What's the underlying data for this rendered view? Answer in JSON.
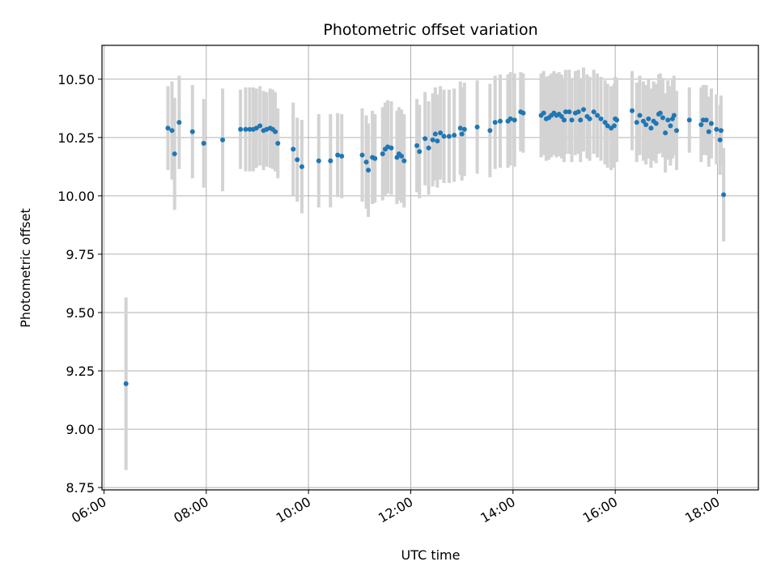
{
  "chart_data": {
    "type": "scatter",
    "title": "Photometric offset variation",
    "xlabel": "UTC time",
    "ylabel": "Photometric offset",
    "x_unit": "hours (UTC, same day)",
    "xlim": [
      5.96,
      18.8
    ],
    "ylim": [
      8.74,
      10.645
    ],
    "x_ticks": [
      6,
      8,
      10,
      12,
      14,
      16,
      18
    ],
    "x_tick_labels": [
      "06:00",
      "08:00",
      "10:00",
      "12:00",
      "14:00",
      "16:00",
      "18:00"
    ],
    "y_ticks": [
      8.75,
      9.0,
      9.25,
      9.5,
      9.75,
      10.0,
      10.25,
      10.5
    ],
    "y_tick_labels": [
      "8.75",
      "9.00",
      "9.25",
      "9.50",
      "9.75",
      "10.00",
      "10.25",
      "10.50"
    ],
    "grid": true,
    "colors": {
      "point": "#1f77b4",
      "errorbar": "#d3d3d3",
      "grid": "#b0b0b0"
    },
    "points": [
      [
        6.43,
        9.195,
        0.37
      ],
      [
        7.25,
        10.29,
        0.18
      ],
      [
        7.33,
        10.28,
        0.21
      ],
      [
        7.38,
        10.18,
        0.24
      ],
      [
        7.47,
        10.315,
        0.2
      ],
      [
        7.73,
        10.275,
        0.2
      ],
      [
        7.95,
        10.225,
        0.19
      ],
      [
        8.32,
        10.24,
        0.22
      ],
      [
        8.67,
        10.285,
        0.17
      ],
      [
        8.77,
        10.285,
        0.18
      ],
      [
        8.85,
        10.285,
        0.18
      ],
      [
        8.92,
        10.285,
        0.18
      ],
      [
        8.98,
        10.29,
        0.17
      ],
      [
        9.05,
        10.3,
        0.17
      ],
      [
        9.12,
        10.28,
        0.17
      ],
      [
        9.18,
        10.285,
        0.16
      ],
      [
        9.25,
        10.29,
        0.17
      ],
      [
        9.3,
        10.285,
        0.17
      ],
      [
        9.35,
        10.275,
        0.17
      ],
      [
        9.4,
        10.225,
        0.15
      ],
      [
        9.7,
        10.2,
        0.2
      ],
      [
        9.78,
        10.155,
        0.18
      ],
      [
        9.87,
        10.125,
        0.2
      ],
      [
        10.2,
        10.15,
        0.2
      ],
      [
        10.43,
        10.15,
        0.2
      ],
      [
        10.57,
        10.175,
        0.18
      ],
      [
        10.65,
        10.17,
        0.18
      ],
      [
        11.05,
        10.175,
        0.2
      ],
      [
        11.13,
        10.145,
        0.2
      ],
      [
        11.17,
        10.11,
        0.2
      ],
      [
        11.25,
        10.165,
        0.2
      ],
      [
        11.3,
        10.16,
        0.19
      ],
      [
        11.45,
        10.18,
        0.2
      ],
      [
        11.5,
        10.2,
        0.2
      ],
      [
        11.55,
        10.21,
        0.2
      ],
      [
        11.62,
        10.205,
        0.2
      ],
      [
        11.73,
        10.165,
        0.2
      ],
      [
        11.77,
        10.18,
        0.2
      ],
      [
        11.82,
        10.17,
        0.2
      ],
      [
        11.87,
        10.15,
        0.2
      ],
      [
        12.12,
        10.215,
        0.2
      ],
      [
        12.17,
        10.19,
        0.2
      ],
      [
        12.28,
        10.245,
        0.2
      ],
      [
        12.35,
        10.205,
        0.2
      ],
      [
        12.43,
        10.24,
        0.2
      ],
      [
        12.48,
        10.265,
        0.2
      ],
      [
        12.52,
        10.235,
        0.2
      ],
      [
        12.58,
        10.27,
        0.2
      ],
      [
        12.65,
        10.255,
        0.2
      ],
      [
        12.75,
        10.255,
        0.2
      ],
      [
        12.85,
        10.26,
        0.2
      ],
      [
        12.97,
        10.29,
        0.2
      ],
      [
        13.0,
        10.265,
        0.2
      ],
      [
        13.05,
        10.285,
        0.2
      ],
      [
        13.3,
        10.295,
        0.2
      ],
      [
        13.55,
        10.28,
        0.2
      ],
      [
        13.65,
        10.315,
        0.2
      ],
      [
        13.75,
        10.32,
        0.2
      ],
      [
        13.9,
        10.32,
        0.2
      ],
      [
        13.95,
        10.33,
        0.2
      ],
      [
        14.03,
        10.325,
        0.2
      ],
      [
        14.15,
        10.36,
        0.17
      ],
      [
        14.2,
        10.355,
        0.17
      ],
      [
        14.55,
        10.345,
        0.18
      ],
      [
        14.6,
        10.355,
        0.18
      ],
      [
        14.65,
        10.33,
        0.18
      ],
      [
        14.7,
        10.335,
        0.18
      ],
      [
        14.75,
        10.345,
        0.18
      ],
      [
        14.8,
        10.355,
        0.18
      ],
      [
        14.85,
        10.345,
        0.18
      ],
      [
        14.9,
        10.35,
        0.18
      ],
      [
        14.95,
        10.34,
        0.18
      ],
      [
        15.0,
        10.325,
        0.18
      ],
      [
        15.03,
        10.36,
        0.18
      ],
      [
        15.1,
        10.36,
        0.18
      ],
      [
        15.15,
        10.325,
        0.18
      ],
      [
        15.22,
        10.355,
        0.18
      ],
      [
        15.28,
        10.36,
        0.18
      ],
      [
        15.32,
        10.325,
        0.18
      ],
      [
        15.38,
        10.37,
        0.18
      ],
      [
        15.45,
        10.34,
        0.18
      ],
      [
        15.5,
        10.33,
        0.18
      ],
      [
        15.58,
        10.36,
        0.18
      ],
      [
        15.65,
        10.345,
        0.18
      ],
      [
        15.72,
        10.33,
        0.18
      ],
      [
        15.8,
        10.315,
        0.18
      ],
      [
        15.85,
        10.3,
        0.18
      ],
      [
        15.92,
        10.29,
        0.18
      ],
      [
        15.98,
        10.3,
        0.18
      ],
      [
        16.0,
        10.33,
        0.18
      ],
      [
        16.03,
        10.325,
        0.18
      ],
      [
        16.33,
        10.365,
        0.17
      ],
      [
        16.42,
        10.315,
        0.17
      ],
      [
        16.48,
        10.345,
        0.17
      ],
      [
        16.55,
        10.32,
        0.17
      ],
      [
        16.6,
        10.305,
        0.17
      ],
      [
        16.65,
        10.33,
        0.17
      ],
      [
        16.7,
        10.29,
        0.17
      ],
      [
        16.75,
        10.32,
        0.17
      ],
      [
        16.8,
        10.31,
        0.17
      ],
      [
        16.85,
        10.35,
        0.17
      ],
      [
        16.88,
        10.355,
        0.17
      ],
      [
        16.93,
        10.335,
        0.17
      ],
      [
        16.98,
        10.27,
        0.17
      ],
      [
        17.03,
        10.325,
        0.17
      ],
      [
        17.08,
        10.3,
        0.17
      ],
      [
        17.12,
        10.33,
        0.17
      ],
      [
        17.15,
        10.345,
        0.17
      ],
      [
        17.2,
        10.28,
        0.17
      ],
      [
        17.45,
        10.325,
        0.14
      ],
      [
        17.68,
        10.305,
        0.16
      ],
      [
        17.72,
        10.325,
        0.15
      ],
      [
        17.78,
        10.325,
        0.15
      ],
      [
        17.83,
        10.275,
        0.15
      ],
      [
        17.88,
        10.31,
        0.15
      ],
      [
        17.98,
        10.285,
        0.15
      ],
      [
        18.05,
        10.24,
        0.15
      ],
      [
        18.07,
        10.28,
        0.15
      ],
      [
        18.12,
        10.005,
        0.2
      ]
    ]
  }
}
